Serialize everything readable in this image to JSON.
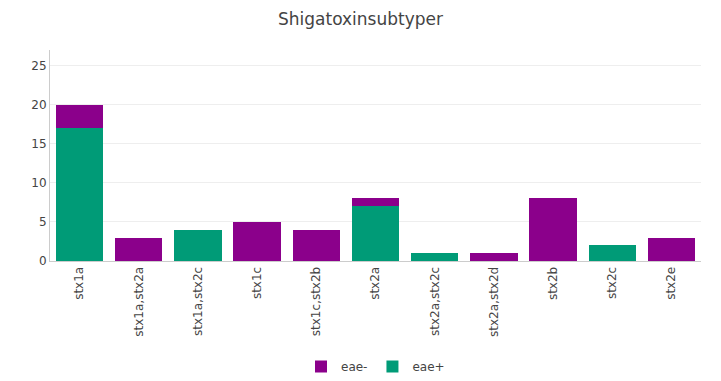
{
  "chart_data": {
    "type": "bar",
    "stacked": true,
    "title": "Shigatoxinsubtyper",
    "categories": [
      "stx1a",
      "stx1a,stx2a",
      "stx1a,stx2c",
      "stx1c",
      "stx1c,stx2b",
      "stx2a",
      "stx2a,stx2c",
      "stx2a,stx2d",
      "stx2b",
      "stx2c",
      "stx2e"
    ],
    "series": [
      {
        "name": "eae+",
        "color": "#009B77",
        "values": [
          17,
          0,
          4,
          0,
          0,
          7,
          1,
          0,
          0,
          2,
          0
        ]
      },
      {
        "name": "eae-",
        "color": "#8B008B",
        "values": [
          3,
          3,
          0,
          5,
          4,
          1,
          0,
          1,
          8,
          0,
          3
        ]
      }
    ],
    "ylim": [
      0,
      27
    ],
    "yticks": [
      0,
      5,
      10,
      15,
      20,
      25
    ],
    "grid": true,
    "legend": "bottom"
  }
}
